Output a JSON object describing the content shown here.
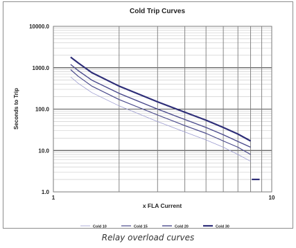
{
  "chart_data": {
    "type": "line",
    "title": "Cold Trip Curves",
    "xlabel": "x FLA Current",
    "ylabel": "Seconds to Trip",
    "x_scale": "log",
    "y_scale": "log",
    "xlim": [
      1,
      10
    ],
    "ylim": [
      1,
      10000
    ],
    "x_tick_labels": [
      "1",
      "10"
    ],
    "y_tick_labels": [
      "10000.0",
      "1000.0",
      "100.0",
      "10.0",
      "1.0"
    ],
    "grid": true,
    "legend_position": "bottom",
    "series": [
      {
        "name": "Cold 10",
        "color": "#9b9bd0",
        "width": 0.8,
        "points": [
          [
            1.2,
            600
          ],
          [
            1.3,
            420
          ],
          [
            1.5,
            250
          ],
          [
            2,
            120
          ],
          [
            3,
            50
          ],
          [
            4,
            28
          ],
          [
            5,
            18
          ],
          [
            6,
            12
          ],
          [
            7,
            8
          ],
          [
            8,
            5.5
          ]
        ]
      },
      {
        "name": "Cold 15",
        "color": "#4a4a8c",
        "width": 1.2,
        "points": [
          [
            1.2,
            900
          ],
          [
            1.3,
            620
          ],
          [
            1.5,
            360
          ],
          [
            2,
            170
          ],
          [
            3,
            72
          ],
          [
            4,
            40
          ],
          [
            5,
            26
          ],
          [
            6,
            17
          ],
          [
            7,
            12
          ],
          [
            8,
            8
          ]
        ]
      },
      {
        "name": "Cold 20",
        "color": "#4a4a8c",
        "width": 1.4,
        "points": [
          [
            1.2,
            1200
          ],
          [
            1.3,
            850
          ],
          [
            1.5,
            500
          ],
          [
            2,
            240
          ],
          [
            3,
            100
          ],
          [
            4,
            56
          ],
          [
            5,
            36
          ],
          [
            6,
            24
          ],
          [
            7,
            16.5
          ],
          [
            8,
            12
          ]
        ]
      },
      {
        "name": "Cold 30",
        "color": "#2e2e78",
        "width": 2.2,
        "points": [
          [
            1.2,
            1800
          ],
          [
            1.3,
            1300
          ],
          [
            1.5,
            760
          ],
          [
            2,
            360
          ],
          [
            3,
            150
          ],
          [
            4,
            84
          ],
          [
            5,
            54
          ],
          [
            6,
            36
          ],
          [
            7,
            25
          ],
          [
            8,
            17
          ]
        ]
      },
      {
        "name": "",
        "color": "#2e2e78",
        "width": 2.2,
        "show_in_legend": false,
        "points": [
          [
            8.1,
            2
          ],
          [
            8.8,
            2
          ]
        ]
      }
    ]
  },
  "caption": "Relay overload curves"
}
